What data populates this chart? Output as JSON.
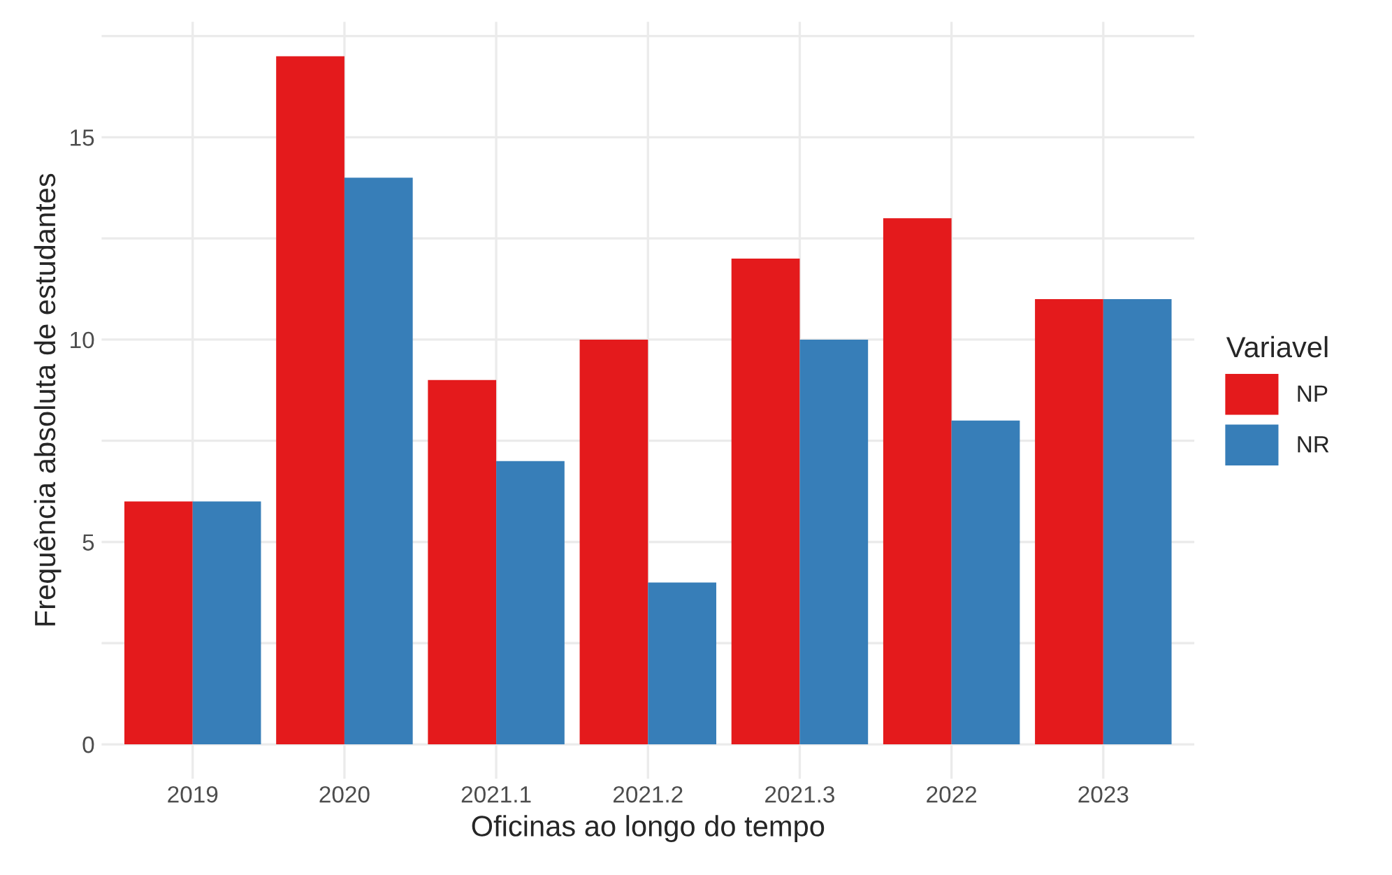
{
  "chart_data": {
    "type": "bar",
    "xlabel": "Oficinas ao longo do tempo",
    "ylabel": "Frequência absoluta de estudantes",
    "legend_title": "Variavel",
    "categories": [
      "2019",
      "2020",
      "2021.1",
      "2021.2",
      "2021.3",
      "2022",
      "2023"
    ],
    "series": [
      {
        "name": "NP",
        "color": "#e41a1c",
        "values": [
          6,
          17,
          9,
          10,
          12,
          13,
          11
        ]
      },
      {
        "name": "NR",
        "color": "#377eb8",
        "values": [
          6,
          14,
          7,
          4,
          10,
          8,
          11
        ]
      }
    ],
    "ylim": [
      -0.85,
      17.85
    ],
    "yticks": [
      0,
      {
        "value": 2.5,
        "label": null
      },
      5,
      {
        "value": 7.5,
        "label": null
      },
      10,
      {
        "value": 12.5,
        "label": null
      },
      15,
      {
        "value": 17.5,
        "label": null
      }
    ],
    "grid": true,
    "legend": "right"
  }
}
